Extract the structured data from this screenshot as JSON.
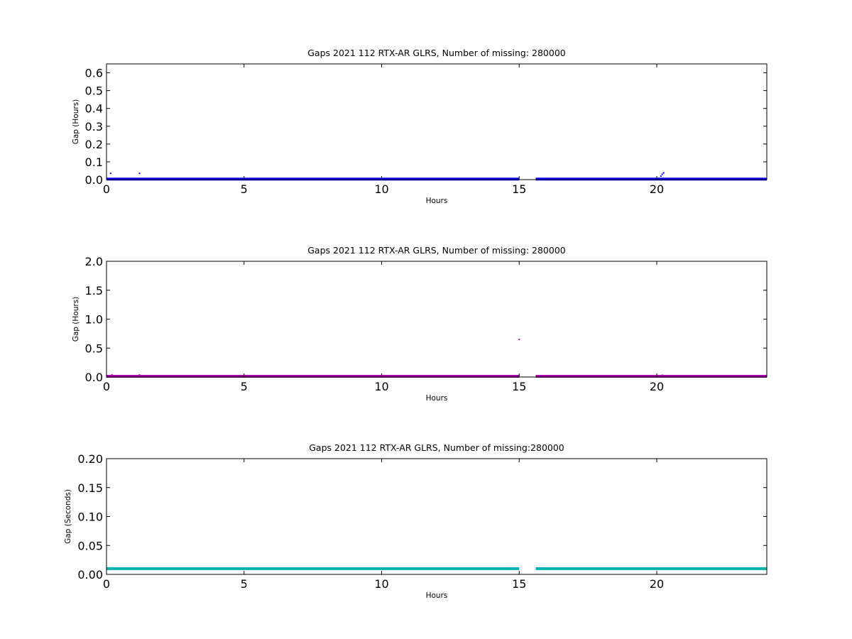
{
  "chart_data": [
    {
      "type": "scatter",
      "title": "Gaps 2021 112 RTX-AR  GLRS, Number of missing: 280000",
      "xlabel": "Hours",
      "ylabel": "Gap (Hours)",
      "xlim": [
        0,
        24
      ],
      "ylim": [
        0,
        0.65
      ],
      "xticks": [
        "0",
        "5",
        "10",
        "15",
        "20"
      ],
      "yticks": [
        "0.0",
        "0.1",
        "0.2",
        "0.3",
        "0.4",
        "0.5",
        "0.6"
      ],
      "color": "#0000ff",
      "baseline": {
        "value": 0.003,
        "segments": [
          [
            0,
            15.0
          ],
          [
            15.6,
            24
          ]
        ]
      },
      "points": [
        {
          "x": 0.15,
          "y": 0.035
        },
        {
          "x": 1.2,
          "y": 0.035
        },
        {
          "x": 20.15,
          "y": 0.02
        },
        {
          "x": 20.2,
          "y": 0.03
        },
        {
          "x": 20.25,
          "y": 0.038
        }
      ]
    },
    {
      "type": "scatter",
      "title": "Gaps 2021 112 RTX-AR  GLRS, Number of missing: 280000",
      "xlabel": "Hours",
      "ylabel": "Gap (Hours)",
      "xlim": [
        0,
        24
      ],
      "ylim": [
        0,
        2.0
      ],
      "xticks": [
        "0",
        "5",
        "10",
        "15",
        "20"
      ],
      "yticks": [
        "0.0",
        "0.5",
        "1.0",
        "1.5",
        "2.0"
      ],
      "color": "#aa00aa",
      "baseline": {
        "value": 0.012,
        "segments": [
          [
            0,
            15.0
          ],
          [
            15.6,
            24
          ]
        ]
      },
      "points": [
        {
          "x": 0.2,
          "y": 0.035
        },
        {
          "x": 1.2,
          "y": 0.035
        },
        {
          "x": 15.0,
          "y": 0.65
        },
        {
          "x": 20.2,
          "y": 0.03
        }
      ]
    },
    {
      "type": "scatter",
      "title": "Gaps 2021 112 RTX-AR  GLRS, Number of missing:280000",
      "xlabel": "Hours",
      "ylabel": "Gap (Seconds)",
      "xlim": [
        0,
        24
      ],
      "ylim": [
        0,
        0.2
      ],
      "xticks": [
        "0",
        "5",
        "10",
        "15",
        "20"
      ],
      "yticks": [
        "0.00",
        "0.05",
        "0.10",
        "0.15",
        "0.20"
      ],
      "color": "#00b0b0",
      "baseline": {
        "value": 0.01,
        "segments": [
          [
            0,
            15.0
          ],
          [
            15.6,
            24
          ]
        ]
      },
      "points": []
    }
  ]
}
